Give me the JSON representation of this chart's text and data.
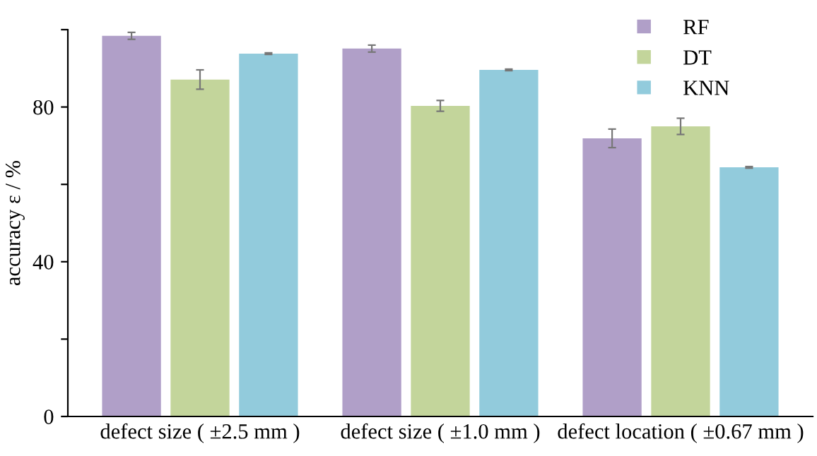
{
  "chart_data": {
    "type": "bar",
    "ylabel": "accuracy ε / %",
    "categories": [
      "defect size ( ±2.5 mm )",
      "defect size ( ±1.0 mm )",
      "defect location ( ±0.67 mm )"
    ],
    "series": [
      {
        "name": "RF",
        "color": "#b09fc8",
        "values": [
          98.4,
          95.1,
          71.9
        ],
        "errors": [
          0.9,
          0.9,
          2.4
        ]
      },
      {
        "name": "DT",
        "color": "#c3d59b",
        "values": [
          87.1,
          80.3,
          75.0
        ],
        "errors": [
          2.5,
          1.4,
          2.1
        ]
      },
      {
        "name": "KNN",
        "color": "#92cbdc",
        "values": [
          93.8,
          89.6,
          64.4
        ],
        "errors": [
          0.2,
          0.2,
          0.2
        ]
      }
    ],
    "ylim": [
      0,
      100
    ],
    "yticks": [
      0,
      {
        "value": 20,
        "label": null
      },
      40,
      {
        "value": 60,
        "label": null
      },
      80,
      {
        "value": 100,
        "label": null
      }
    ],
    "grid": false,
    "legend": "top right"
  }
}
